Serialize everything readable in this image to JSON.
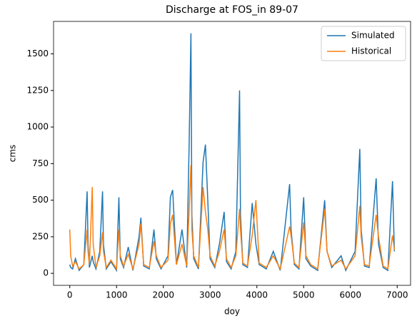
{
  "chart_data": {
    "type": "line",
    "title": "Discharge at FOS_in 89-07",
    "xlabel": "doy",
    "ylabel": "cms",
    "x": [
      0,
      20,
      60,
      120,
      200,
      300,
      370,
      390,
      420,
      480,
      500,
      560,
      640,
      700,
      720,
      780,
      880,
      1000,
      1050,
      1080,
      1150,
      1250,
      1350,
      1480,
      1520,
      1580,
      1700,
      1800,
      1850,
      1950,
      2100,
      2150,
      2200,
      2280,
      2400,
      2500,
      2550,
      2590,
      2610,
      2650,
      2750,
      2850,
      2900,
      2950,
      3000,
      3100,
      3200,
      3300,
      3350,
      3450,
      3550,
      3630,
      3650,
      3700,
      3800,
      3900,
      3980,
      4050,
      4200,
      4350,
      4500,
      4700,
      4730,
      4800,
      4900,
      5000,
      5050,
      5150,
      5300,
      5450,
      5500,
      5600,
      5800,
      5900,
      6100,
      6200,
      6230,
      6300,
      6400,
      6550,
      6600,
      6700,
      6800,
      6900,
      6940
    ],
    "series": [
      {
        "name": "Simulated",
        "color": "#1f77b4",
        "values": [
          60,
          40,
          30,
          100,
          20,
          60,
          560,
          200,
          40,
          120,
          80,
          30,
          150,
          560,
          200,
          30,
          80,
          20,
          520,
          100,
          40,
          180,
          20,
          250,
          380,
          50,
          30,
          300,
          100,
          30,
          120,
          520,
          570,
          60,
          300,
          40,
          860,
          1640,
          400,
          100,
          30,
          760,
          880,
          500,
          100,
          40,
          200,
          420,
          80,
          30,
          150,
          1250,
          400,
          60,
          40,
          480,
          200,
          60,
          30,
          150,
          20,
          610,
          300,
          60,
          30,
          520,
          100,
          50,
          20,
          500,
          150,
          40,
          120,
          20,
          150,
          850,
          300,
          50,
          40,
          650,
          200,
          40,
          20,
          630,
          150
        ]
      },
      {
        "name": "Historical",
        "color": "#ff7f0e",
        "values": [
          300,
          120,
          50,
          80,
          30,
          60,
          300,
          150,
          60,
          590,
          200,
          40,
          120,
          280,
          150,
          40,
          90,
          30,
          300,
          120,
          50,
          130,
          30,
          200,
          340,
          60,
          40,
          220,
          120,
          40,
          90,
          340,
          400,
          60,
          200,
          50,
          420,
          740,
          300,
          120,
          40,
          590,
          420,
          300,
          120,
          50,
          150,
          300,
          100,
          40,
          120,
          440,
          300,
          70,
          50,
          260,
          500,
          70,
          40,
          120,
          30,
          320,
          260,
          70,
          40,
          350,
          120,
          60,
          30,
          440,
          150,
          50,
          90,
          30,
          120,
          460,
          250,
          60,
          50,
          400,
          250,
          50,
          30,
          260,
          160
        ]
      }
    ],
    "xlim": [
      -347,
      7286
    ],
    "xticks": [
      0,
      1000,
      2000,
      3000,
      4000,
      5000,
      6000,
      7000
    ],
    "ylim": [
      -82,
      1722
    ],
    "yticks": [
      0,
      250,
      500,
      750,
      1000,
      1250,
      1500
    ],
    "legend": "upper right"
  }
}
